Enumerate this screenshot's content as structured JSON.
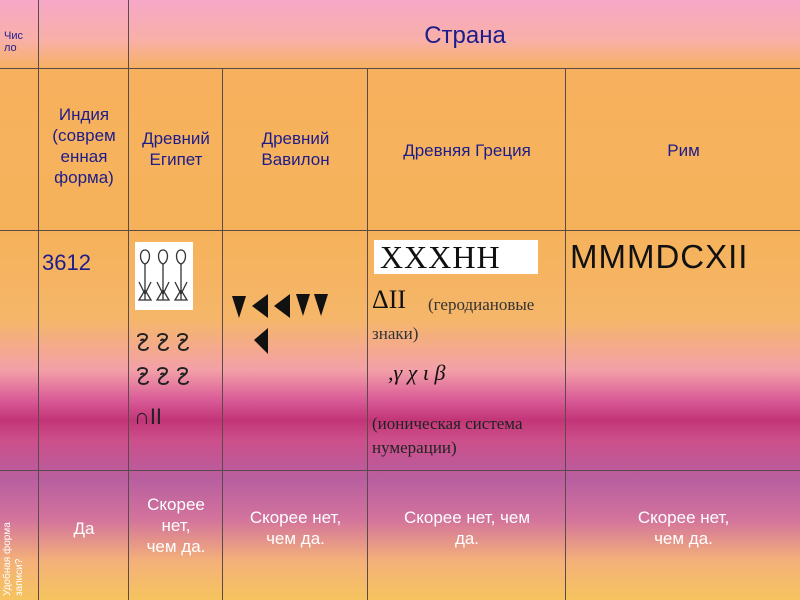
{
  "header": {
    "number_label": "Чис\nло",
    "country_label": "Страна"
  },
  "columns": [
    {
      "label": "Индия\n(соврем\nенная\nформа)"
    },
    {
      "label": "Древний\nЕгипет"
    },
    {
      "label": "Древний\nВавилон"
    },
    {
      "label": "Древняя Греция"
    },
    {
      "label": "Рим"
    }
  ],
  "number_row": {
    "india": "3612",
    "egypt_symbol_2": "∩II",
    "greece_herodian": "XXXHH",
    "greece_herodian_line2": "ΔII",
    "greece_herodian_note": "(геродиановые\nзнаки)",
    "greece_ionic": ",γ χ ι β",
    "greece_ionic_note": "(ионическая система\nнумерации)",
    "rome": "MMMDCXII"
  },
  "convenience_row": {
    "label": "Удобная форма\nзаписи?",
    "india": "Да",
    "egypt": "Скорее\nнет,\nчем да.",
    "babylon": "Скорее нет,\nчем да.",
    "greece": "Скорее нет, чем\nда.",
    "rome": "Скорее нет,\nчем да."
  }
}
